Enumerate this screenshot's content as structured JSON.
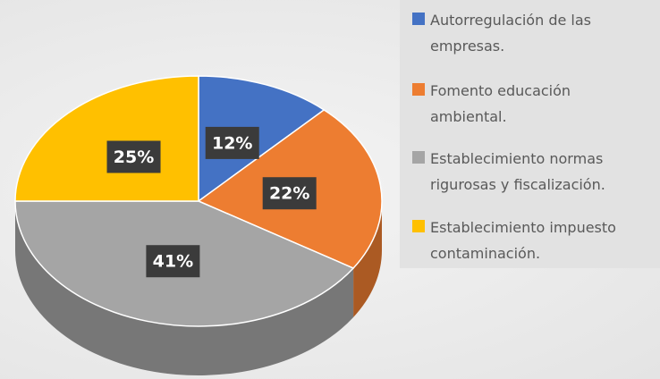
{
  "chart_data": {
    "type": "pie",
    "categories": [
      "Autorregulación de las empresas.",
      "Fomento educación ambiental.",
      "Establecimiento normas rigurosas y fiscalización.",
      "Establecimiento impuesto contaminación."
    ],
    "values": [
      12,
      22,
      41,
      25
    ],
    "value_labels": [
      "12%",
      "22%",
      "41%",
      "25%"
    ],
    "colors": [
      "#4472c4",
      "#ed7d31",
      "#a5a5a5",
      "#ffc000"
    ],
    "legend": "right"
  }
}
